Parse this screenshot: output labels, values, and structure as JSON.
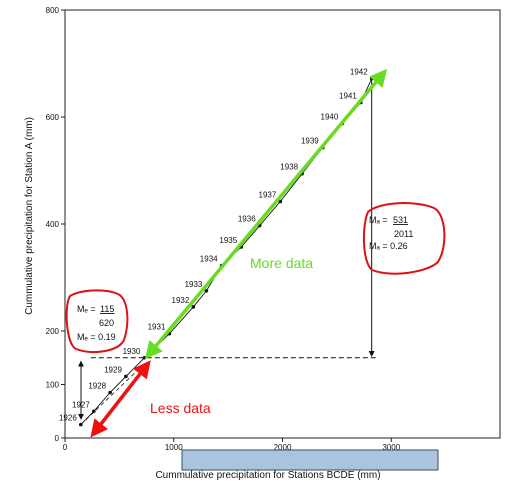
{
  "chart_data": {
    "type": "scatter",
    "xlabel": "Cummulative precipitation for Stations BCDE (mm)",
    "ylabel": "Cummulative precipitation for Station A (mm)",
    "xlim": [
      0,
      4000
    ],
    "ylim": [
      0,
      800
    ],
    "x_ticks": [
      {
        "value": 0,
        "label": "0"
      },
      {
        "value": 1000,
        "label": "1000"
      },
      {
        "value": 2000,
        "label": "2000"
      },
      {
        "value": 3000,
        "label": "3000"
      }
    ],
    "y_ticks": [
      {
        "value": 0,
        "label": "0"
      },
      {
        "value": 100,
        "label": "100"
      },
      {
        "value": 200,
        "label": "200"
      },
      {
        "value": 400,
        "label": "400"
      },
      {
        "value": 600,
        "label": "600"
      },
      {
        "value": 800,
        "label": "800"
      }
    ],
    "points": [
      {
        "year": "1926",
        "x": 145,
        "y": 25
      },
      {
        "year": "1927",
        "x": 265,
        "y": 50
      },
      {
        "year": "1928",
        "x": 415,
        "y": 85
      },
      {
        "year": "1929",
        "x": 560,
        "y": 115
      },
      {
        "year": "1930",
        "x": 730,
        "y": 150
      },
      {
        "year": "1931",
        "x": 960,
        "y": 195
      },
      {
        "year": "1932",
        "x": 1180,
        "y": 245
      },
      {
        "year": "1933",
        "x": 1300,
        "y": 275
      },
      {
        "year": "1934",
        "x": 1440,
        "y": 322
      },
      {
        "year": "1935",
        "x": 1620,
        "y": 357
      },
      {
        "year": "1936",
        "x": 1790,
        "y": 397
      },
      {
        "year": "1937",
        "x": 1980,
        "y": 442
      },
      {
        "year": "1938",
        "x": 2180,
        "y": 494
      },
      {
        "year": "1939",
        "x": 2370,
        "y": 543
      },
      {
        "year": "1940",
        "x": 2550,
        "y": 588
      },
      {
        "year": "1941",
        "x": 2720,
        "y": 627
      },
      {
        "year": "1942",
        "x": 2820,
        "y": 672
      }
    ],
    "guides": {
      "break_y": 150,
      "break_x": 730,
      "upper_x": 2820,
      "lower_x": 145
    }
  },
  "annotations": {
    "slope_lower": {
      "num_label": "Mₑ = ",
      "num": "115",
      "den": "620",
      "value": "Mₑ = 0.19"
    },
    "slope_upper": {
      "num_label": "Mₐ = ",
      "num": "531",
      "den": "2011",
      "value": "Mₐ =  0.26"
    },
    "more_data": "More data",
    "less_data": "Less data"
  },
  "colors": {
    "more_data": "#66dd22",
    "less_data": "#ee1111",
    "circle": "#dd1111",
    "caption_bar": "#a9c4dc"
  }
}
